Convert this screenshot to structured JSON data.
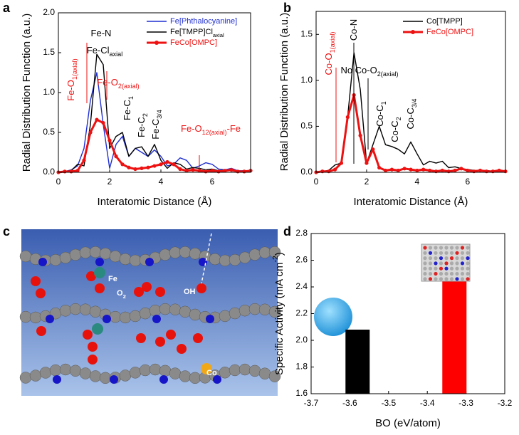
{
  "panel_labels": [
    "a",
    "b",
    "c",
    "d"
  ],
  "image_c": {
    "labels": [
      [
        {
          "text": "Fe"
        }
      ],
      [
        {
          "text": "O"
        },
        {
          "sub": "2"
        }
      ],
      [
        {
          "text": "OH"
        }
      ],
      [
        {
          "text": "Co"
        }
      ]
    ]
  },
  "chart_data": [
    {
      "type": "line",
      "xlabel": "Interatomic Distance (Å)",
      "ylabel": [
        {
          "text": "Radial Distribution Function (a.u.)"
        }
      ],
      "x": [
        0,
        0.25,
        0.5,
        0.75,
        1.0,
        1.25,
        1.5,
        1.75,
        2.0,
        2.25,
        2.5,
        2.75,
        3.0,
        3.25,
        3.5,
        3.75,
        4.0,
        4.25,
        4.5,
        4.75,
        5.0,
        5.25,
        5.5,
        5.75,
        6.0,
        6.25,
        6.5,
        6.75,
        7.0,
        7.25,
        7.5
      ],
      "xlim": [
        0,
        7.5
      ],
      "xticks": [
        0,
        2,
        4,
        6
      ],
      "ylim": [
        0,
        2.0
      ],
      "yticks": [
        {
          "value": 0,
          "label": "0.0"
        },
        0.5,
        {
          "value": 1,
          "label": "1.0"
        },
        1.5,
        {
          "value": 2,
          "label": "2.0"
        }
      ],
      "series": [
        {
          "name": [
            {
              "text": "Fe[Phthalocyanine]"
            }
          ],
          "color": "#1f2fd0",
          "markers": false,
          "values": [
            0,
            0.01,
            0.03,
            0.08,
            0.3,
            0.9,
            1.25,
            0.6,
            0.05,
            0.35,
            0.45,
            0.2,
            0.3,
            0.25,
            0.2,
            0.28,
            0.2,
            0.08,
            0.1,
            0.18,
            0.15,
            0.05,
            0.08,
            0.12,
            0.1,
            0.04,
            0.03,
            0.05,
            0.02,
            0.02,
            0.01
          ]
        },
        {
          "name": [
            {
              "text": "Fe[TMPP]Cl"
            },
            {
              "sub": "axial"
            }
          ],
          "color": "#000000",
          "markers": false,
          "values": [
            0,
            0.01,
            0.02,
            0.1,
            0.08,
            0.6,
            1.48,
            1.35,
            0.3,
            0.45,
            0.5,
            0.2,
            0.3,
            0.32,
            0.2,
            0.35,
            0.15,
            0.05,
            0.12,
            0.1,
            0.04,
            0.06,
            0.05,
            0.03,
            0.04,
            0.02,
            0.03,
            0.02,
            0.01,
            0.02,
            0.01
          ]
        },
        {
          "name": [
            {
              "text": "FeCo[OMPC]"
            }
          ],
          "color": "#ee1111",
          "markers": true,
          "values": [
            0,
            0.01,
            0.01,
            0.02,
            0.15,
            0.5,
            0.66,
            0.62,
            0.4,
            0.2,
            0.1,
            0.06,
            0.04,
            0.05,
            0.06,
            0.08,
            0.1,
            0.13,
            0.1,
            0.04,
            0.02,
            0.03,
            0.02,
            0.01,
            0.02,
            0.01,
            0.02,
            0.03,
            0.01,
            0.01,
            0.02
          ]
        }
      ],
      "annotations": [
        {
          "text": [
            {
              "text": "Fe-N"
            }
          ],
          "color": "#000000"
        },
        {
          "text": [
            {
              "text": "Fe-Cl"
            },
            {
              "sub": "axial"
            }
          ],
          "color": "#000000"
        },
        {
          "text": [
            {
              "text": "Fe-O"
            },
            {
              "sub": "1(axial)"
            }
          ],
          "color": "#ee1111"
        },
        {
          "text": [
            {
              "text": "Fe-O"
            },
            {
              "sub": "2(axial)"
            }
          ],
          "color": "#ee1111"
        },
        {
          "text": [
            {
              "text": "Fe-C"
            },
            {
              "sub": "1"
            }
          ],
          "color": "#000000"
        },
        {
          "text": [
            {
              "text": "Fe-C"
            },
            {
              "sub": "2"
            }
          ],
          "color": "#000000"
        },
        {
          "text": [
            {
              "text": "Fe-C"
            },
            {
              "sub": "3/4"
            }
          ],
          "color": "#000000"
        },
        {
          "text": [
            {
              "text": "Fe-O"
            },
            {
              "sub": "12(axial)"
            },
            {
              "text": "-Fe"
            }
          ],
          "color": "#ee1111"
        }
      ]
    },
    {
      "type": "line",
      "xlabel": "Interatomic Distance (Å)",
      "ylabel": [
        {
          "text": "Radial Distribution Function (a.u.)"
        }
      ],
      "x": [
        0,
        0.25,
        0.5,
        0.75,
        1.0,
        1.25,
        1.5,
        1.75,
        2.0,
        2.25,
        2.5,
        2.75,
        3.0,
        3.25,
        3.5,
        3.75,
        4.0,
        4.25,
        4.5,
        4.75,
        5.0,
        5.25,
        5.5,
        5.75,
        6.0,
        6.25,
        6.5,
        6.75,
        7.0,
        7.25,
        7.5
      ],
      "xlim": [
        0,
        7.5
      ],
      "xticks": [
        0,
        2,
        4,
        6
      ],
      "ylim": [
        0,
        1.75
      ],
      "yticks": [
        {
          "value": 0,
          "label": "0.0"
        },
        0.5,
        {
          "value": 1,
          "label": "1.0"
        },
        1.5
      ],
      "series": [
        {
          "name": [
            {
              "text": "Co[TMPP]"
            }
          ],
          "color": "#000000",
          "markers": false,
          "values": [
            0,
            0.01,
            0.02,
            0.08,
            0.1,
            0.6,
            1.3,
            0.9,
            0.1,
            0.3,
            0.5,
            0.3,
            0.28,
            0.25,
            0.2,
            0.33,
            0.2,
            0.08,
            0.12,
            0.1,
            0.12,
            0.05,
            0.06,
            0.04,
            0.03,
            0.02,
            0.02,
            0.02,
            0.01,
            0.01,
            0.01
          ]
        },
        {
          "name": [
            {
              "text": "FeCo[OMPC]"
            }
          ],
          "color": "#ee1111",
          "markers": true,
          "values": [
            0,
            0.01,
            0.01,
            0.03,
            0.1,
            0.6,
            0.84,
            0.4,
            0.1,
            0.25,
            0.05,
            0.02,
            0.03,
            0.02,
            0.04,
            0.03,
            0.02,
            0.03,
            0.02,
            0.01,
            0.02,
            0.01,
            0.02,
            0.04,
            0.02,
            0.01,
            0.02,
            0.01,
            0.01,
            0.02,
            0.01
          ]
        }
      ],
      "annotations": [
        {
          "text": [
            {
              "text": "Co-O"
            },
            {
              "sub": "1(axial)"
            }
          ],
          "color": "#ee1111"
        },
        {
          "text": [
            {
              "text": "Co-N"
            }
          ],
          "color": "#000000"
        },
        {
          "text": [
            {
              "text": "No Co-O"
            },
            {
              "sub": "2(axial)"
            }
          ],
          "color": "#000000"
        },
        {
          "text": [
            {
              "text": "Co-C"
            },
            {
              "sub": "1"
            }
          ],
          "color": "#000000"
        },
        {
          "text": [
            {
              "text": "Co-C"
            },
            {
              "sub": "2"
            }
          ],
          "color": "#000000"
        },
        {
          "text": [
            {
              "text": "Co-C"
            },
            {
              "sub": "3/4"
            }
          ],
          "color": "#000000"
        }
      ]
    },
    {
      "type": "bar",
      "xlabel": "BO (eV/atom)",
      "ylabel": [
        {
          "text": "Specific Activity (mA cm"
        },
        {
          "sup": "-2"
        },
        {
          "text": ")"
        }
      ],
      "x": [
        -3.58,
        -3.33
      ],
      "values": [
        2.08,
        2.44
      ],
      "colors": [
        "#000000",
        "#ff0000"
      ],
      "xlim": [
        -3.7,
        -3.2
      ],
      "xticks": [
        -3.7,
        -3.6,
        -3.5,
        -3.4,
        -3.3,
        -3.2
      ],
      "ylim": [
        1.6,
        2.8
      ],
      "yticks": [
        1.6,
        1.8,
        {
          "value": 2,
          "label": "2.0"
        },
        2.2,
        2.4,
        2.6,
        2.8
      ]
    }
  ]
}
